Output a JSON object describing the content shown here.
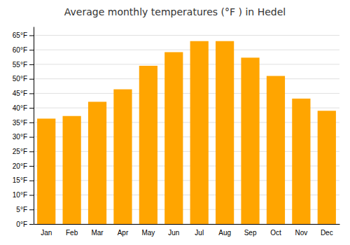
{
  "chart_data": {
    "type": "bar",
    "title": "Average monthly temperatures (°F ) in Hedel",
    "categories": [
      "Jan",
      "Feb",
      "Mar",
      "Apr",
      "May",
      "Jun",
      "Jul",
      "Aug",
      "Sep",
      "Oct",
      "Nov",
      "Dec"
    ],
    "values": [
      36.3,
      37.2,
      42.1,
      46.4,
      54.5,
      59.2,
      63.0,
      63.0,
      57.3,
      51.0,
      43.2,
      39.0
    ],
    "color": "#FFA500",
    "ylim": [
      0,
      68
    ],
    "yticks": [
      {
        "value": 0,
        "label": "0°F"
      },
      {
        "value": 5,
        "label": "5°F"
      },
      {
        "value": 10,
        "label": "10°F"
      },
      {
        "value": 15,
        "label": "15°F"
      },
      {
        "value": 20,
        "label": "20°F"
      },
      {
        "value": 25,
        "label": "25°F"
      },
      {
        "value": 30,
        "label": "30°F"
      },
      {
        "value": 35,
        "label": "35°F"
      },
      {
        "value": 40,
        "label": "40°F"
      },
      {
        "value": 45,
        "label": "45°F"
      },
      {
        "value": 50,
        "label": "50°F"
      },
      {
        "value": 55,
        "label": "55°F"
      },
      {
        "value": 60,
        "label": "60°F"
      },
      {
        "value": 65,
        "label": "65°F"
      }
    ],
    "grid": true
  }
}
